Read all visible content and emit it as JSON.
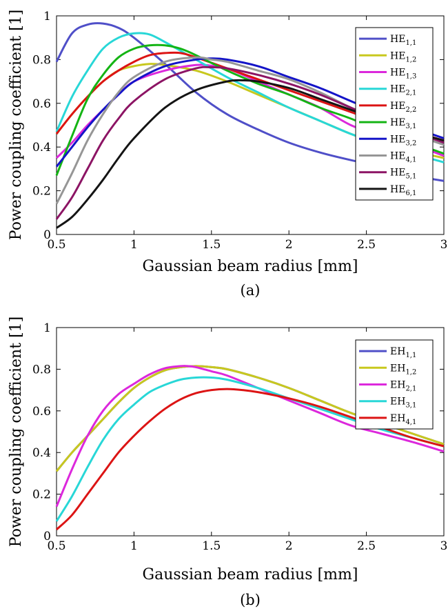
{
  "chart_data": [
    {
      "type": "line",
      "caption": "(a)",
      "xlabel": "Gaussian beam radius [mm]",
      "ylabel": "Power coupling coefficient [1]",
      "xlim": [
        0.5,
        3
      ],
      "ylim": [
        0,
        1
      ],
      "xticks": [
        "0.5",
        "1",
        "1.5",
        "2",
        "2.5",
        "3"
      ],
      "yticks": [
        "0",
        "0.2",
        "0.4",
        "0.6",
        "0.8",
        "1"
      ],
      "grid": false,
      "legend_position": "top-right",
      "series": [
        {
          "name": "HE",
          "sub": "1,1",
          "color": "#4f4fc8",
          "x": [
            0.5,
            0.6,
            0.7,
            0.8,
            0.9,
            1.0,
            1.2,
            1.4,
            1.6,
            1.8,
            2.0,
            2.2,
            2.4,
            2.6,
            2.8,
            3.0
          ],
          "y": [
            0.79,
            0.92,
            0.96,
            0.965,
            0.945,
            0.9,
            0.78,
            0.65,
            0.55,
            0.48,
            0.42,
            0.375,
            0.34,
            0.31,
            0.27,
            0.245
          ]
        },
        {
          "name": "HE",
          "sub": "1,2",
          "color": "#c8c81e",
          "x": [
            0.5,
            0.6,
            0.7,
            0.8,
            0.9,
            1.0,
            1.1,
            1.2,
            1.4,
            1.6,
            1.8,
            2.0,
            2.2,
            2.4,
            2.6,
            2.8,
            3.0
          ],
          "y": [
            0.46,
            0.55,
            0.63,
            0.7,
            0.75,
            0.77,
            0.78,
            0.775,
            0.75,
            0.7,
            0.64,
            0.58,
            0.52,
            0.46,
            0.41,
            0.38,
            0.35
          ]
        },
        {
          "name": "HE",
          "sub": "1,3",
          "color": "#dc28dc",
          "x": [
            0.5,
            0.6,
            0.7,
            0.8,
            0.9,
            1.0,
            1.2,
            1.4,
            1.5,
            1.6,
            1.8,
            2.0,
            2.2,
            2.4,
            2.6,
            2.8,
            3.0
          ],
          "y": [
            0.35,
            0.42,
            0.5,
            0.57,
            0.64,
            0.7,
            0.75,
            0.775,
            0.772,
            0.76,
            0.7,
            0.64,
            0.58,
            0.5,
            0.45,
            0.41,
            0.36
          ]
        },
        {
          "name": "HE",
          "sub": "2,1",
          "color": "#28d7d7",
          "x": [
            0.5,
            0.6,
            0.7,
            0.8,
            0.9,
            1.0,
            1.1,
            1.2,
            1.4,
            1.6,
            1.8,
            2.0,
            2.2,
            2.4,
            2.6,
            2.8,
            3.0
          ],
          "y": [
            0.47,
            0.63,
            0.75,
            0.85,
            0.9,
            0.92,
            0.915,
            0.88,
            0.8,
            0.72,
            0.65,
            0.58,
            0.52,
            0.46,
            0.41,
            0.37,
            0.33
          ]
        },
        {
          "name": "HE",
          "sub": "2,2",
          "color": "#dc1414",
          "x": [
            0.5,
            0.6,
            0.7,
            0.8,
            0.9,
            1.0,
            1.1,
            1.2,
            1.3,
            1.4,
            1.6,
            1.8,
            2.0,
            2.2,
            2.4,
            2.6,
            2.8,
            3.0
          ],
          "y": [
            0.46,
            0.55,
            0.63,
            0.7,
            0.75,
            0.79,
            0.82,
            0.83,
            0.83,
            0.81,
            0.76,
            0.71,
            0.66,
            0.61,
            0.56,
            0.51,
            0.47,
            0.43
          ]
        },
        {
          "name": "HE",
          "sub": "3,1",
          "color": "#14b414",
          "x": [
            0.5,
            0.6,
            0.7,
            0.8,
            0.9,
            1.0,
            1.1,
            1.2,
            1.3,
            1.4,
            1.6,
            1.8,
            2.0,
            2.2,
            2.4,
            2.6,
            2.8,
            3.0
          ],
          "y": [
            0.27,
            0.45,
            0.62,
            0.73,
            0.81,
            0.85,
            0.865,
            0.865,
            0.85,
            0.82,
            0.75,
            0.69,
            0.64,
            0.58,
            0.53,
            0.47,
            0.42,
            0.37
          ]
        },
        {
          "name": "HE",
          "sub": "3,2",
          "color": "#1414c8",
          "x": [
            0.5,
            0.6,
            0.7,
            0.8,
            0.9,
            1.0,
            1.2,
            1.4,
            1.5,
            1.6,
            1.8,
            2.0,
            2.2,
            2.4,
            2.6,
            2.8,
            3.0
          ],
          "y": [
            0.31,
            0.4,
            0.49,
            0.57,
            0.64,
            0.7,
            0.77,
            0.8,
            0.805,
            0.8,
            0.77,
            0.72,
            0.67,
            0.61,
            0.55,
            0.49,
            0.44
          ]
        },
        {
          "name": "HE",
          "sub": "4,1",
          "color": "#969696",
          "x": [
            0.5,
            0.6,
            0.7,
            0.8,
            0.9,
            1.0,
            1.2,
            1.4,
            1.5,
            1.6,
            1.8,
            2.0,
            2.2,
            2.4,
            2.6,
            2.8,
            3.0
          ],
          "y": [
            0.14,
            0.28,
            0.43,
            0.55,
            0.65,
            0.72,
            0.79,
            0.81,
            0.8,
            0.79,
            0.75,
            0.71,
            0.65,
            0.58,
            0.52,
            0.46,
            0.41
          ]
        },
        {
          "name": "HE",
          "sub": "5,1",
          "color": "#8c1464",
          "x": [
            0.5,
            0.6,
            0.7,
            0.8,
            0.9,
            1.0,
            1.2,
            1.4,
            1.5,
            1.6,
            1.8,
            2.0,
            2.2,
            2.4,
            2.6,
            2.8,
            3.0
          ],
          "y": [
            0.07,
            0.17,
            0.3,
            0.43,
            0.53,
            0.61,
            0.71,
            0.76,
            0.765,
            0.76,
            0.73,
            0.69,
            0.64,
            0.58,
            0.52,
            0.47,
            0.42
          ]
        },
        {
          "name": "HE",
          "sub": "6,1",
          "color": "#141414",
          "x": [
            0.5,
            0.6,
            0.7,
            0.8,
            0.9,
            1.0,
            1.2,
            1.4,
            1.6,
            1.7,
            1.8,
            2.0,
            2.2,
            2.4,
            2.6,
            2.8,
            3.0
          ],
          "y": [
            0.03,
            0.08,
            0.16,
            0.25,
            0.35,
            0.44,
            0.58,
            0.66,
            0.7,
            0.705,
            0.7,
            0.67,
            0.62,
            0.57,
            0.52,
            0.47,
            0.43
          ]
        }
      ]
    },
    {
      "type": "line",
      "caption": "(b)",
      "xlabel": "Gaussian beam radius [mm]",
      "ylabel": "Power coupling coefficient [1]",
      "xlim": [
        0.5,
        3
      ],
      "ylim": [
        0,
        1
      ],
      "xticks": [
        "0.5",
        "1",
        "1.5",
        "2",
        "2.5",
        "3"
      ],
      "yticks": [
        "0",
        "0.2",
        "0.4",
        "0.6",
        "0.8",
        "1"
      ],
      "grid": false,
      "legend_position": "top-right",
      "series": [
        {
          "name": "EH",
          "sub": "1,1",
          "color": "#4f4fc8",
          "x": [
            0.5,
            0.6,
            0.7,
            0.8,
            0.9,
            1.0,
            1.1,
            1.2,
            1.3,
            1.4,
            1.5,
            1.6,
            1.8,
            2.0,
            2.2,
            2.4,
            2.6,
            2.8,
            3.0
          ],
          "y": [
            0.31,
            0.4,
            0.48,
            0.56,
            0.64,
            0.71,
            0.76,
            0.795,
            0.81,
            0.815,
            0.81,
            0.8,
            0.76,
            0.71,
            0.65,
            0.59,
            0.54,
            0.49,
            0.44
          ]
        },
        {
          "name": "EH",
          "sub": "1,2",
          "color": "#c8c81e",
          "x": [
            0.5,
            0.6,
            0.7,
            0.8,
            0.9,
            1.0,
            1.1,
            1.2,
            1.3,
            1.4,
            1.5,
            1.6,
            1.8,
            2.0,
            2.2,
            2.4,
            2.6,
            2.8,
            3.0
          ],
          "y": [
            0.31,
            0.4,
            0.48,
            0.56,
            0.64,
            0.71,
            0.76,
            0.795,
            0.81,
            0.815,
            0.81,
            0.8,
            0.76,
            0.71,
            0.65,
            0.59,
            0.54,
            0.49,
            0.44
          ]
        },
        {
          "name": "EH",
          "sub": "2,1",
          "color": "#dc28dc",
          "x": [
            0.5,
            0.6,
            0.7,
            0.8,
            0.9,
            1.0,
            1.1,
            1.2,
            1.3,
            1.35,
            1.4,
            1.5,
            1.6,
            1.8,
            2.0,
            2.2,
            2.4,
            2.6,
            2.8,
            3.0
          ],
          "y": [
            0.14,
            0.32,
            0.48,
            0.6,
            0.68,
            0.73,
            0.775,
            0.805,
            0.815,
            0.815,
            0.81,
            0.79,
            0.77,
            0.71,
            0.65,
            0.59,
            0.53,
            0.49,
            0.45,
            0.405
          ]
        },
        {
          "name": "EH",
          "sub": "3,1",
          "color": "#28d7d7",
          "x": [
            0.5,
            0.6,
            0.7,
            0.8,
            0.9,
            1.0,
            1.1,
            1.2,
            1.3,
            1.4,
            1.5,
            1.6,
            1.8,
            2.0,
            2.2,
            2.4,
            2.6,
            2.8,
            3.0
          ],
          "y": [
            0.07,
            0.19,
            0.33,
            0.46,
            0.56,
            0.63,
            0.69,
            0.725,
            0.75,
            0.76,
            0.76,
            0.75,
            0.71,
            0.66,
            0.61,
            0.56,
            0.51,
            0.47,
            0.43
          ]
        },
        {
          "name": "EH",
          "sub": "4,1",
          "color": "#dc1414",
          "x": [
            0.5,
            0.6,
            0.7,
            0.8,
            0.9,
            1.0,
            1.1,
            1.2,
            1.3,
            1.4,
            1.5,
            1.6,
            1.7,
            1.8,
            2.0,
            2.2,
            2.4,
            2.6,
            2.8,
            3.0
          ],
          "y": [
            0.03,
            0.1,
            0.2,
            0.3,
            0.4,
            0.48,
            0.55,
            0.61,
            0.655,
            0.685,
            0.7,
            0.705,
            0.7,
            0.69,
            0.66,
            0.62,
            0.57,
            0.52,
            0.47,
            0.43
          ]
        }
      ]
    }
  ]
}
